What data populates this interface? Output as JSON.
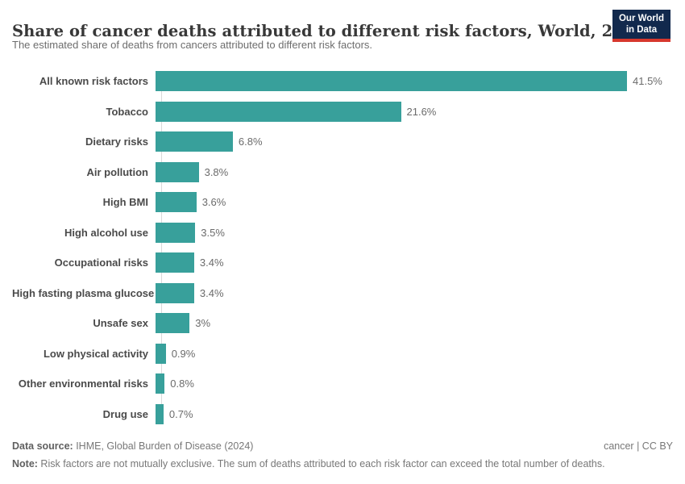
{
  "header": {
    "title": "Share of cancer deaths attributed to different risk factors, World, 2021",
    "subtitle": "The estimated share of deaths from cancers attributed to different risk factors.",
    "logo": {
      "line1": "Our World",
      "line2": "in Data"
    }
  },
  "chart_data": {
    "type": "bar",
    "orientation": "horizontal",
    "title": "Share of cancer deaths attributed to different risk factors, World, 2021",
    "categories": [
      "All known risk factors",
      "Tobacco",
      "Dietary risks",
      "Air pollution",
      "High BMI",
      "High alcohol use",
      "Occupational risks",
      "High fasting plasma glucose",
      "Unsafe sex",
      "Low physical activity",
      "Other environmental risks",
      "Drug use"
    ],
    "values": [
      41.5,
      21.6,
      6.8,
      3.8,
      3.6,
      3.5,
      3.4,
      3.4,
      3,
      0.9,
      0.8,
      0.7
    ],
    "value_labels": [
      "41.5%",
      "21.6%",
      "6.8%",
      "3.8%",
      "3.6%",
      "3.5%",
      "3.4%",
      "3.4%",
      "3%",
      "0.9%",
      "0.8%",
      "0.7%"
    ],
    "xlabel": "",
    "ylabel": "",
    "xlim": [
      0,
      41.5
    ],
    "grid": false,
    "legend": "none",
    "bar_color": "#38a09b",
    "axis_color": "#d9d9d9"
  },
  "footer": {
    "datasource_label": "Data source:",
    "datasource_text": " IHME, Global Burden of Disease (2024)",
    "license": "cancer | CC BY",
    "note_label": "Note:",
    "note_text": " Risk factors are not mutually exclusive. The sum of deaths attributed to each risk factor can exceed the total number of deaths."
  }
}
